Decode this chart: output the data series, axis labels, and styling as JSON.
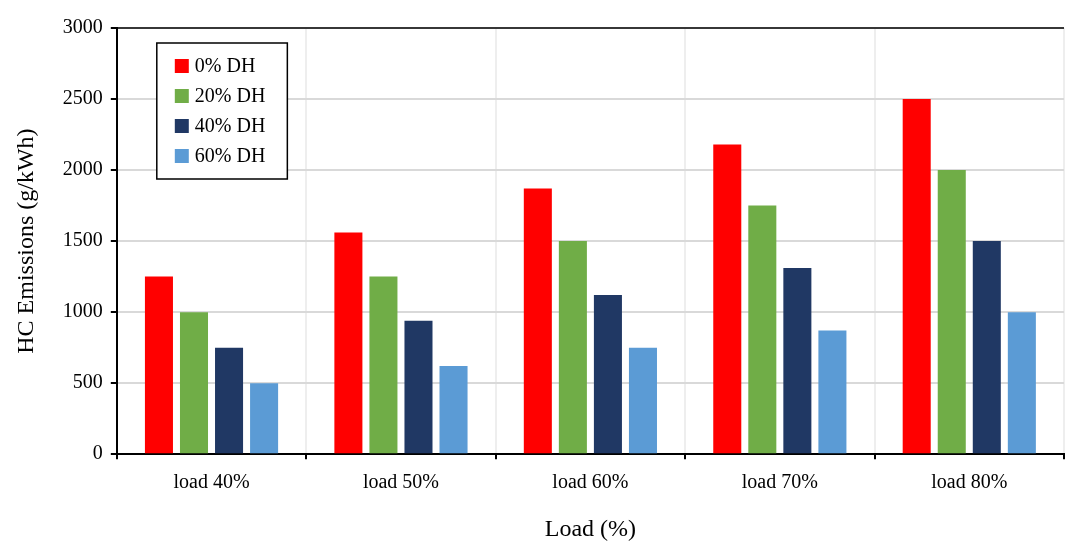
{
  "chart_data": {
    "type": "bar",
    "xlabel": "Load (%)",
    "ylabel": "HC Emissions (g/kWh)",
    "categories": [
      "load 40%",
      "load 50%",
      "load 60%",
      "load 70%",
      "load 80%"
    ],
    "series": [
      {
        "name": "0% DH",
        "color": "#ff0000",
        "values": [
          1250,
          1560,
          1870,
          2180,
          2500
        ]
      },
      {
        "name": "20% DH",
        "color": "#70ad47",
        "values": [
          1000,
          1250,
          1500,
          1750,
          2000
        ]
      },
      {
        "name": "40% DH",
        "color": "#203864",
        "values": [
          750,
          940,
          1120,
          1310,
          1500
        ]
      },
      {
        "name": "60% DH",
        "color": "#5b9bd5",
        "values": [
          500,
          620,
          750,
          870,
          1000
        ]
      }
    ],
    "ylim": [
      0,
      3000
    ],
    "yticks": [
      0,
      500,
      1000,
      1500,
      2000,
      2500,
      3000
    ],
    "grid": true,
    "legend": "top left"
  }
}
